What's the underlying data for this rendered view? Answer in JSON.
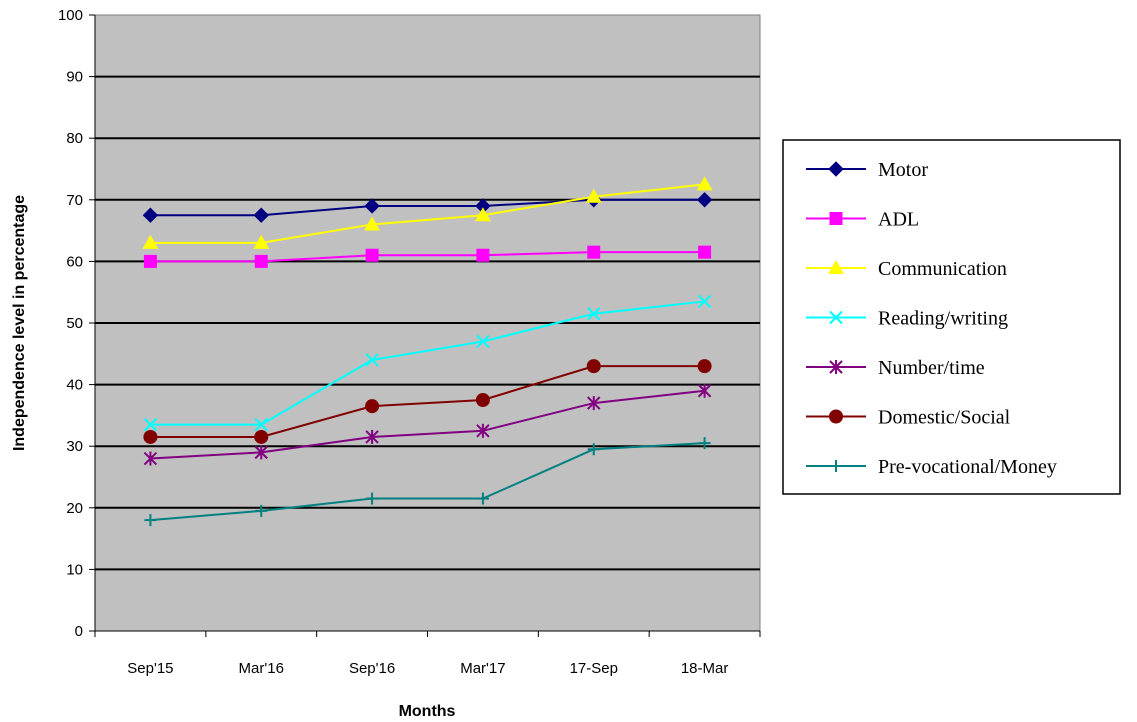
{
  "chart_data": {
    "type": "line",
    "title": "",
    "xlabel": "Months",
    "ylabel": "Independence level in percentage",
    "ylim": [
      0,
      100
    ],
    "ytick_step": 10,
    "categories": [
      "Sep'15",
      "Mar'16",
      "Sep'16",
      "Mar'17",
      "17-Sep",
      "18-Mar"
    ],
    "grid": "horizontal",
    "plot_background": "#C0C0C0",
    "legend_position": "right",
    "series": [
      {
        "name": "Motor",
        "values": [
          67.5,
          67.5,
          69,
          69,
          70,
          70
        ],
        "color": "#000080",
        "marker": "diamond"
      },
      {
        "name": "ADL",
        "values": [
          60,
          60,
          61,
          61,
          61.5,
          61.5
        ],
        "color": "#FF00FF",
        "marker": "square"
      },
      {
        "name": "Communication",
        "values": [
          63,
          63,
          66,
          67.5,
          70.5,
          72.5
        ],
        "color": "#FFFF00",
        "marker": "triangle"
      },
      {
        "name": "Reading/writing",
        "values": [
          33.5,
          33.5,
          44,
          47,
          51.5,
          53.5
        ],
        "color": "#00FFFF",
        "marker": "x"
      },
      {
        "name": "Number/time",
        "values": [
          28,
          29,
          31.5,
          32.5,
          37,
          39
        ],
        "color": "#800080",
        "marker": "star"
      },
      {
        "name": "Domestic/Social",
        "values": [
          31.5,
          31.5,
          36.5,
          37.5,
          43,
          43
        ],
        "color": "#800000",
        "marker": "circle"
      },
      {
        "name": "Pre-vocational/Money",
        "values": [
          18,
          19.5,
          21.5,
          21.5,
          29.5,
          30.5
        ],
        "color": "#008080",
        "marker": "plus"
      }
    ]
  }
}
